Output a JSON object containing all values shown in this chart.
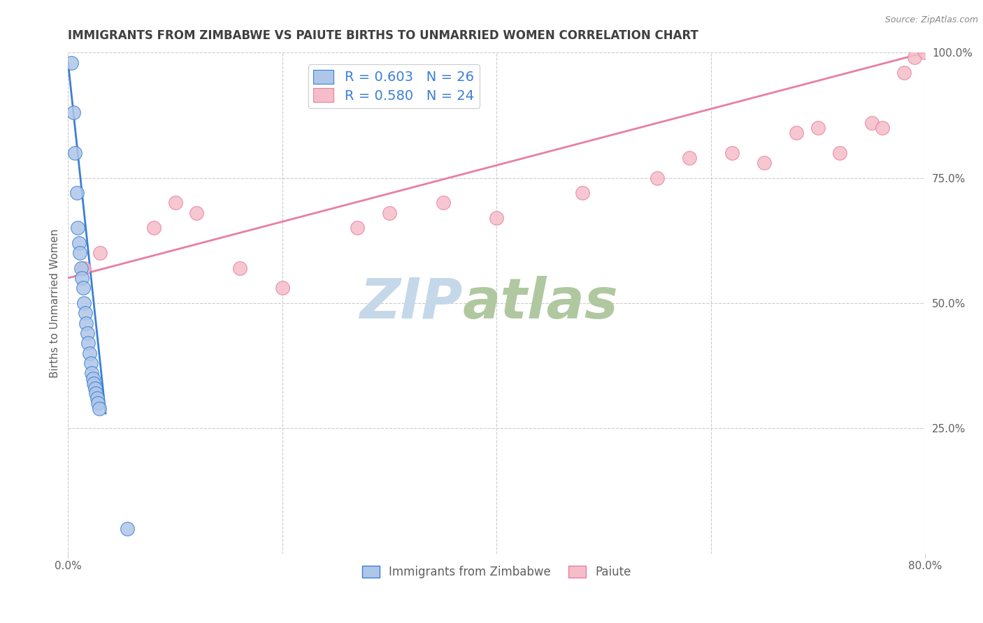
{
  "title": "IMMIGRANTS FROM ZIMBABWE VS PAIUTE BIRTHS TO UNMARRIED WOMEN CORRELATION CHART",
  "source": "Source: ZipAtlas.com",
  "ylabel_left": "Births to Unmarried Women",
  "xlim": [
    0.0,
    80.0
  ],
  "ylim": [
    0.0,
    100.0
  ],
  "yticks_right": [
    25.0,
    50.0,
    75.0,
    100.0
  ],
  "ytick_labels_right": [
    "25.0%",
    "50.0%",
    "75.0%",
    "100.0%"
  ],
  "blue_R": 0.603,
  "blue_N": 26,
  "pink_R": 0.58,
  "pink_N": 24,
  "blue_color": "#aec6e8",
  "blue_line_color": "#3a7fd5",
  "pink_color": "#f5bdc8",
  "pink_line_color": "#e87fa0",
  "legend_label_blue": "Immigrants from Zimbabwe",
  "legend_label_pink": "Paiute",
  "blue_scatter_x": [
    0.3,
    0.5,
    0.6,
    0.8,
    0.9,
    1.0,
    1.1,
    1.2,
    1.3,
    1.4,
    1.5,
    1.6,
    1.7,
    1.8,
    1.9,
    2.0,
    2.1,
    2.2,
    2.3,
    2.4,
    2.5,
    2.6,
    2.7,
    2.8,
    2.9,
    5.5
  ],
  "blue_scatter_y": [
    98.0,
    88.0,
    80.0,
    72.0,
    65.0,
    62.0,
    60.0,
    57.0,
    55.0,
    53.0,
    50.0,
    48.0,
    46.0,
    44.0,
    42.0,
    40.0,
    38.0,
    36.0,
    35.0,
    34.0,
    33.0,
    32.0,
    31.0,
    30.0,
    29.0,
    5.0
  ],
  "pink_scatter_x": [
    1.5,
    3.0,
    8.0,
    10.0,
    12.0,
    16.0,
    20.0,
    27.0,
    30.0,
    35.0,
    40.0,
    48.0,
    55.0,
    58.0,
    62.0,
    65.0,
    68.0,
    70.0,
    72.0,
    75.0,
    76.0,
    78.0,
    79.0,
    80.0
  ],
  "pink_scatter_y": [
    57.0,
    60.0,
    65.0,
    70.0,
    68.0,
    57.0,
    53.0,
    65.0,
    68.0,
    70.0,
    67.0,
    72.0,
    75.0,
    79.0,
    80.0,
    78.0,
    84.0,
    85.0,
    80.0,
    86.0,
    85.0,
    96.0,
    99.0,
    100.0
  ],
  "blue_line_x": [
    0.0,
    3.5
  ],
  "blue_line_y": [
    98.0,
    28.0
  ],
  "pink_line_x": [
    0.0,
    80.0
  ],
  "pink_line_y": [
    55.0,
    100.0
  ],
  "watermark_zip": "ZIP",
  "watermark_atlas": "atlas",
  "watermark_color_zip": "#c5d8ea",
  "watermark_color_atlas": "#b0c8a0",
  "background_color": "#ffffff",
  "grid_color": "#cccccc",
  "title_color": "#404040",
  "title_fontsize": 12,
  "axis_label_color": "#606060",
  "tick_label_color": "#606060",
  "legend_R_color": "#3a7fd5",
  "figsize": [
    14.06,
    8.92
  ],
  "dpi": 100
}
